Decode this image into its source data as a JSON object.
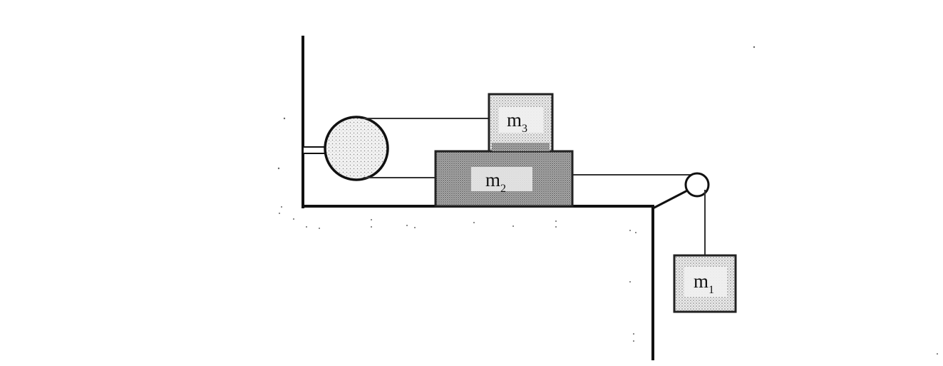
{
  "diagram": {
    "masses": {
      "m1": {
        "symbol": "m",
        "subscript": "1"
      },
      "m2": {
        "symbol": "m",
        "subscript": "2"
      },
      "m3": {
        "symbol": "m",
        "subscript": "3"
      }
    },
    "colors": {
      "ink": "#111111",
      "block_fill_light": "#e6e6e6",
      "block_fill_dark": "#a6a6a6",
      "background": "#ffffff"
    }
  }
}
